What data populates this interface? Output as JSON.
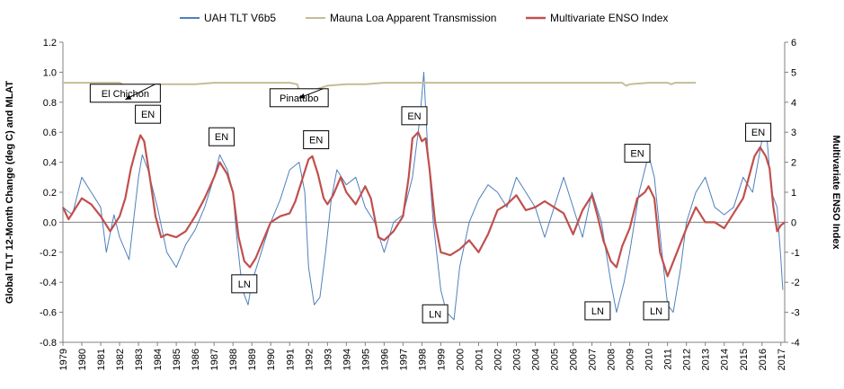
{
  "chart_data": {
    "type": "line",
    "x_axis": {
      "label": "",
      "tick_labels": [
        "1979",
        "1980",
        "1981",
        "1982",
        "1983",
        "1984",
        "1985",
        "1986",
        "1987",
        "1988",
        "1989",
        "1990",
        "1991",
        "1992",
        "1993",
        "1994",
        "1995",
        "1996",
        "1997",
        "1998",
        "1999",
        "2000",
        "2001",
        "2002",
        "2003",
        "2004",
        "2005",
        "2006",
        "2007",
        "2008",
        "2009",
        "2010",
        "2011",
        "2012",
        "2013",
        "2014",
        "2015",
        "2016",
        "2017"
      ],
      "range": [
        1979,
        2017.2
      ]
    },
    "y_axis_left": {
      "label": "Global TLT 12-Month Change (deg C) and MLAT",
      "range": [
        -0.8,
        1.2
      ],
      "ticks": [
        -0.8,
        -0.6,
        -0.4,
        -0.2,
        0,
        0.2,
        0.4,
        0.6,
        0.8,
        1.0,
        1.2
      ],
      "tick_labels": [
        "-0.8",
        "-0.6",
        "-0.4",
        "-0.2",
        "0.0",
        "0.2",
        "0.4",
        "0.6",
        "0.8",
        "1.0",
        "1.2"
      ]
    },
    "y_axis_right": {
      "label": "Multivariate ENSO Index",
      "range": [
        -4,
        6
      ],
      "ticks": [
        -4,
        -3,
        -2,
        -1,
        0,
        1,
        2,
        3,
        4,
        5,
        6
      ],
      "tick_labels": [
        "-4",
        "-3",
        "-2",
        "-1",
        "0",
        "1",
        "2",
        "3",
        "4",
        "5",
        "6"
      ]
    },
    "grid": false,
    "legend_position": "top",
    "series": [
      {
        "name": "UAH TLT V6b5",
        "color": "#4f81bd",
        "axis": "left",
        "x": [
          1979.0,
          1979.5,
          1980.0,
          1980.5,
          1981.0,
          1981.3,
          1981.7,
          1982.0,
          1982.5,
          1983.0,
          1983.2,
          1983.5,
          1984.0,
          1984.5,
          1985.0,
          1985.5,
          1986.0,
          1986.5,
          1987.0,
          1987.3,
          1987.7,
          1988.0,
          1988.2,
          1988.5,
          1988.8,
          1989.0,
          1989.5,
          1990.0,
          1990.5,
          1991.0,
          1991.5,
          1991.8,
          1992.0,
          1992.3,
          1992.6,
          1992.9,
          1993.2,
          1993.5,
          1994.0,
          1994.5,
          1995.0,
          1995.5,
          1996.0,
          1996.5,
          1997.0,
          1997.5,
          1997.9,
          1998.1,
          1998.3,
          1998.6,
          1999.0,
          1999.3,
          1999.7,
          2000.0,
          2000.5,
          2001.0,
          2001.5,
          2002.0,
          2002.5,
          2003.0,
          2003.5,
          2004.0,
          2004.5,
          2005.0,
          2005.5,
          2006.0,
          2006.5,
          2007.0,
          2007.5,
          2008.0,
          2008.3,
          2008.7,
          2009.0,
          2009.5,
          2010.0,
          2010.3,
          2010.7,
          2011.0,
          2011.3,
          2011.7,
          2012.0,
          2012.5,
          2013.0,
          2013.5,
          2014.0,
          2014.5,
          2015.0,
          2015.5,
          2016.0,
          2016.2,
          2016.5,
          2016.8,
          2017.0,
          2017.1
        ],
        "y": [
          0.1,
          0.05,
          0.3,
          0.2,
          0.1,
          -0.2,
          0.05,
          -0.1,
          -0.25,
          0.3,
          0.45,
          0.35,
          0.1,
          -0.2,
          -0.3,
          -0.15,
          -0.05,
          0.1,
          0.3,
          0.45,
          0.35,
          0.2,
          -0.1,
          -0.45,
          -0.55,
          -0.4,
          -0.2,
          0.0,
          0.15,
          0.35,
          0.4,
          0.2,
          -0.3,
          -0.55,
          -0.5,
          -0.2,
          0.15,
          0.35,
          0.25,
          0.3,
          0.1,
          0.0,
          -0.2,
          0.0,
          0.05,
          0.3,
          0.7,
          1.0,
          0.5,
          0.0,
          -0.45,
          -0.6,
          -0.65,
          -0.3,
          0.0,
          0.15,
          0.25,
          0.2,
          0.1,
          0.3,
          0.2,
          0.1,
          -0.1,
          0.1,
          0.3,
          0.1,
          -0.1,
          0.2,
          0.0,
          -0.4,
          -0.6,
          -0.4,
          -0.2,
          0.2,
          0.45,
          0.3,
          -0.2,
          -0.55,
          -0.6,
          -0.3,
          0.0,
          0.2,
          0.3,
          0.1,
          0.05,
          0.1,
          0.3,
          0.2,
          0.55,
          0.65,
          0.2,
          0.1,
          -0.25,
          -0.45
        ]
      },
      {
        "name": "Mauna Loa Apparent Transmission",
        "color": "#c4bd97",
        "axis": "left",
        "x": [
          1979.0,
          1980.0,
          1981.0,
          1982.0,
          1982.25,
          1982.4,
          1982.6,
          1983.0,
          1984.0,
          1985.0,
          1986.0,
          1987.0,
          1988.0,
          1989.0,
          1990.0,
          1991.0,
          1991.4,
          1991.6,
          1992.0,
          1992.5,
          1993.0,
          1994.0,
          1995.0,
          1996.0,
          1997.0,
          1998.0,
          1999.0,
          2000.0,
          2001.0,
          2002.0,
          2003.0,
          2004.0,
          2005.0,
          2006.0,
          2007.0,
          2008.0,
          2008.6,
          2008.8,
          2009.0,
          2010.0,
          2011.0,
          2011.2,
          2011.4,
          2012.0,
          2012.5
        ],
        "y": [
          0.93,
          0.93,
          0.93,
          0.93,
          0.91,
          0.83,
          0.89,
          0.9,
          0.92,
          0.92,
          0.92,
          0.93,
          0.93,
          0.93,
          0.93,
          0.93,
          0.92,
          0.84,
          0.86,
          0.89,
          0.91,
          0.92,
          0.92,
          0.93,
          0.93,
          0.93,
          0.93,
          0.93,
          0.93,
          0.93,
          0.93,
          0.93,
          0.93,
          0.93,
          0.93,
          0.93,
          0.93,
          0.91,
          0.92,
          0.93,
          0.93,
          0.92,
          0.93,
          0.93,
          0.93
        ]
      },
      {
        "name": "Multivariate ENSO Index",
        "color": "#c0504d",
        "axis": "right",
        "x": [
          1979.0,
          1979.3,
          1979.6,
          1980.0,
          1980.5,
          1981.0,
          1981.5,
          1982.0,
          1982.3,
          1982.6,
          1982.9,
          1983.1,
          1983.3,
          1983.6,
          1983.9,
          1984.2,
          1984.5,
          1985.0,
          1985.5,
          1986.0,
          1986.5,
          1987.0,
          1987.3,
          1987.7,
          1988.0,
          1988.3,
          1988.6,
          1988.9,
          1989.2,
          1989.6,
          1990.0,
          1990.5,
          1991.0,
          1991.3,
          1991.7,
          1992.0,
          1992.2,
          1992.5,
          1992.8,
          1993.0,
          1993.3,
          1993.7,
          1994.0,
          1994.5,
          1995.0,
          1995.3,
          1995.7,
          1996.0,
          1996.5,
          1997.0,
          1997.3,
          1997.5,
          1997.8,
          1998.0,
          1998.2,
          1998.4,
          1998.7,
          1999.0,
          1999.5,
          2000.0,
          2000.5,
          2001.0,
          2001.5,
          2002.0,
          2002.5,
          2003.0,
          2003.5,
          2004.0,
          2004.5,
          2005.0,
          2005.5,
          2006.0,
          2006.5,
          2007.0,
          2007.3,
          2007.6,
          2008.0,
          2008.3,
          2008.6,
          2009.0,
          2009.4,
          2009.8,
          2010.0,
          2010.3,
          2010.6,
          2011.0,
          2011.5,
          2012.0,
          2012.5,
          2013.0,
          2013.5,
          2014.0,
          2014.5,
          2015.0,
          2015.3,
          2015.6,
          2015.9,
          2016.2,
          2016.4,
          2016.6,
          2016.8,
          2017.0,
          2017.2
        ],
        "y": [
          0.5,
          0.1,
          0.4,
          0.8,
          0.6,
          0.2,
          -0.3,
          0.2,
          0.8,
          1.8,
          2.5,
          2.9,
          2.7,
          1.5,
          0.2,
          -0.5,
          -0.4,
          -0.5,
          -0.3,
          0.2,
          0.8,
          1.5,
          2.0,
          1.6,
          1.0,
          -0.5,
          -1.3,
          -1.5,
          -1.2,
          -0.6,
          0.0,
          0.2,
          0.3,
          0.7,
          1.5,
          2.1,
          2.2,
          1.6,
          0.8,
          0.6,
          0.9,
          1.5,
          1.0,
          0.6,
          1.2,
          0.8,
          -0.5,
          -0.6,
          -0.3,
          0.2,
          1.5,
          2.8,
          3.0,
          2.7,
          2.8,
          1.8,
          0.0,
          -1.0,
          -1.1,
          -0.9,
          -0.6,
          -1.0,
          -0.4,
          0.4,
          0.6,
          0.9,
          0.4,
          0.5,
          0.7,
          0.5,
          0.3,
          -0.4,
          0.4,
          0.9,
          0.2,
          -0.6,
          -1.3,
          -1.5,
          -0.8,
          -0.2,
          0.8,
          1.0,
          1.2,
          0.8,
          -1.0,
          -1.8,
          -1.0,
          -0.2,
          0.5,
          0.0,
          0.0,
          -0.2,
          0.3,
          0.8,
          1.5,
          2.2,
          2.5,
          2.2,
          1.8,
          0.5,
          -0.3,
          -0.1,
          0.0
        ]
      }
    ],
    "annotations": [
      {
        "text": "El Chichon",
        "x": 1982.3,
        "y_right": 4.3,
        "arrow_to": [
          1982.3,
          0.83
        ]
      },
      {
        "text": "Pinatubo",
        "x": 1991.5,
        "y_right": 4.15,
        "arrow_to": [
          1991.5,
          0.84
        ]
      },
      {
        "text": "EN",
        "x": 1983.5,
        "y_right": 3.6
      },
      {
        "text": "EN",
        "x": 1987.4,
        "y_right": 2.85
      },
      {
        "text": "EN",
        "x": 1992.4,
        "y_right": 2.75
      },
      {
        "text": "EN",
        "x": 1997.6,
        "y_right": 3.55
      },
      {
        "text": "EN",
        "x": 2009.4,
        "y_right": 2.3
      },
      {
        "text": "EN",
        "x": 2015.8,
        "y_right": 3.0
      },
      {
        "text": "LN",
        "x": 1988.6,
        "y_right": -2.05
      },
      {
        "text": "LN",
        "x": 1998.7,
        "y_right": -3.05
      },
      {
        "text": "LN",
        "x": 2007.3,
        "y_right": -2.95
      },
      {
        "text": "LN",
        "x": 2010.4,
        "y_right": -2.95
      }
    ]
  }
}
